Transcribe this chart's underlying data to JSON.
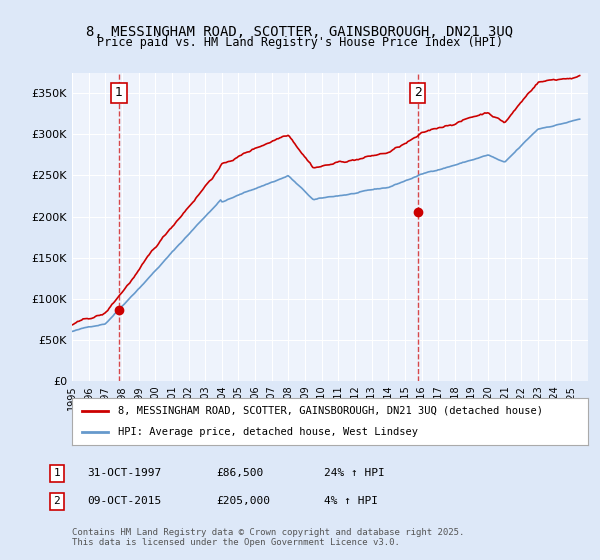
{
  "title_line1": "8, MESSINGHAM ROAD, SCOTTER, GAINSBOROUGH, DN21 3UQ",
  "title_line2": "Price paid vs. HM Land Registry's House Price Index (HPI)",
  "legend_label1": "8, MESSINGHAM ROAD, SCOTTER, GAINSBOROUGH, DN21 3UQ (detached house)",
  "legend_label2": "HPI: Average price, detached house, West Lindsey",
  "annotation1_label": "1",
  "annotation1_date": "31-OCT-1997",
  "annotation1_price": "£86,500",
  "annotation1_hpi": "24% ↑ HPI",
  "annotation2_label": "2",
  "annotation2_date": "09-OCT-2015",
  "annotation2_price": "£205,000",
  "annotation2_hpi": "4% ↑ HPI",
  "footer": "Contains HM Land Registry data © Crown copyright and database right 2025.\nThis data is licensed under the Open Government Licence v3.0.",
  "sale1_year": 1997.83,
  "sale1_price": 86500,
  "sale2_year": 2015.77,
  "sale2_price": 205000,
  "line1_color": "#cc0000",
  "line2_color": "#6699cc",
  "background_color": "#dde8f8",
  "plot_bg_color": "#eef3fc",
  "grid_color": "#ffffff",
  "ylim": [
    0,
    375000
  ],
  "yticks": [
    0,
    50000,
    100000,
    150000,
    200000,
    250000,
    300000,
    350000
  ],
  "xlabel_fontsize": 8,
  "ylabel_fontsize": 8,
  "title_fontsize": 10
}
